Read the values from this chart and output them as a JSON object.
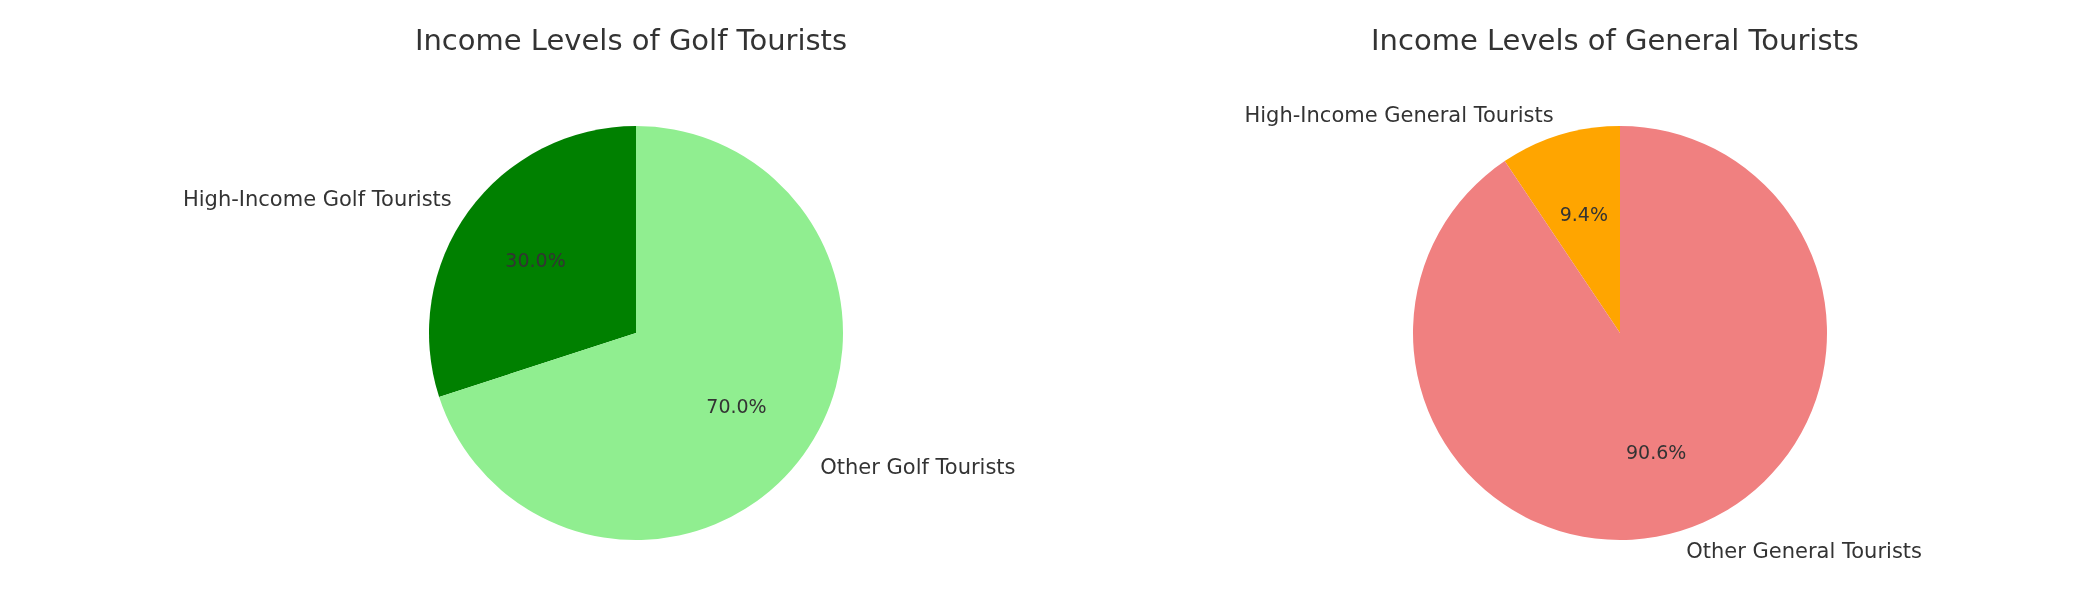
{
  "chart_data": [
    {
      "type": "pie",
      "title": "Income Levels of Golf Tourists",
      "categories": [
        "High-Income Golf Tourists",
        "Other Golf Tourists"
      ],
      "values": [
        30,
        70
      ],
      "colors": [
        "#008000",
        "#90ee90"
      ],
      "value_labels": [
        "30.0%",
        "70.0%"
      ],
      "legend": false
    },
    {
      "type": "pie",
      "title": "Income Levels of General Tourists",
      "categories": [
        "High-Income General Tourists",
        "Other General Tourists"
      ],
      "values": [
        9.4,
        90.6
      ],
      "colors": [
        "#ffa500",
        "#f08080"
      ],
      "value_labels": [
        "9.4%",
        "90.6%"
      ],
      "legend": false
    }
  ]
}
